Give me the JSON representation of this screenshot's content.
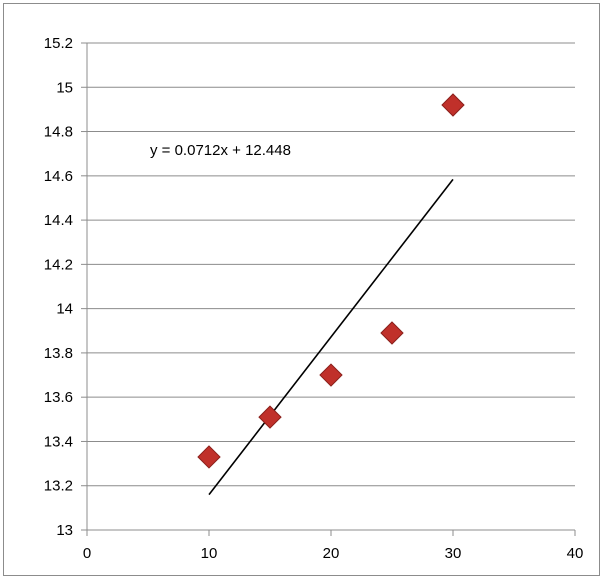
{
  "chart_data": {
    "type": "scatter",
    "title": "",
    "xlabel": "",
    "ylabel": "",
    "xlim": [
      0,
      40
    ],
    "ylim": [
      13,
      15.2
    ],
    "xticks": [
      0,
      10,
      20,
      30,
      40
    ],
    "yticks": [
      13,
      13.2,
      13.4,
      13.6,
      13.8,
      14,
      14.2,
      14.4,
      14.6,
      14.8,
      15,
      15.2
    ],
    "grid": "horizontal",
    "legend": "none",
    "series": [
      {
        "x": [
          10,
          15,
          20,
          25,
          30
        ],
        "y": [
          13.33,
          13.51,
          13.7,
          13.89,
          14.92
        ],
        "marker": "diamond",
        "color": "#c0302a"
      }
    ],
    "trendline": {
      "type": "linear",
      "slope": 0.0712,
      "intercept": 12.448,
      "x_range": [
        10,
        30
      ],
      "color": "#000000",
      "equation_label": "y = 0.0712x + 12.448"
    }
  }
}
